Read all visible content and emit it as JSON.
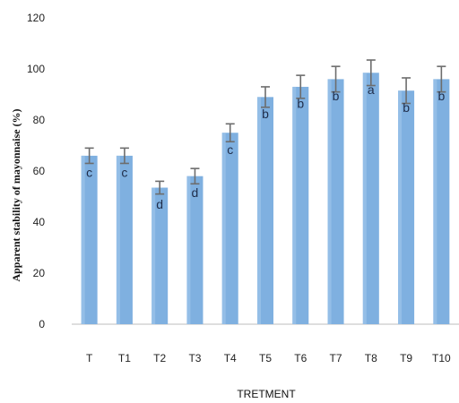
{
  "chart_data": {
    "type": "bar",
    "title": "",
    "xlabel": "TRETMENT",
    "ylabel": "Apparent stability of mayonnaise (%)",
    "ylim": [
      0,
      120
    ],
    "yticks": [
      0,
      20,
      40,
      60,
      80,
      100,
      120
    ],
    "categories": [
      "T",
      "T1",
      "T2",
      "T3",
      "T4",
      "T5",
      "T6",
      "T7",
      "T8",
      "T9",
      "T10"
    ],
    "values": [
      66,
      66,
      53.5,
      58,
      75,
      89,
      93,
      96,
      98.5,
      91.5,
      96
    ],
    "error": [
      3,
      3,
      2.5,
      3,
      3.5,
      4,
      4.5,
      5,
      5,
      5,
      5
    ],
    "letters": [
      "c",
      "c",
      "d",
      "d",
      "c",
      "b",
      "b",
      "b",
      "a",
      "b",
      "b"
    ],
    "bar_color": "#7fb0e0",
    "error_color": "#6d6d6d",
    "grid": false,
    "legend": "none"
  }
}
